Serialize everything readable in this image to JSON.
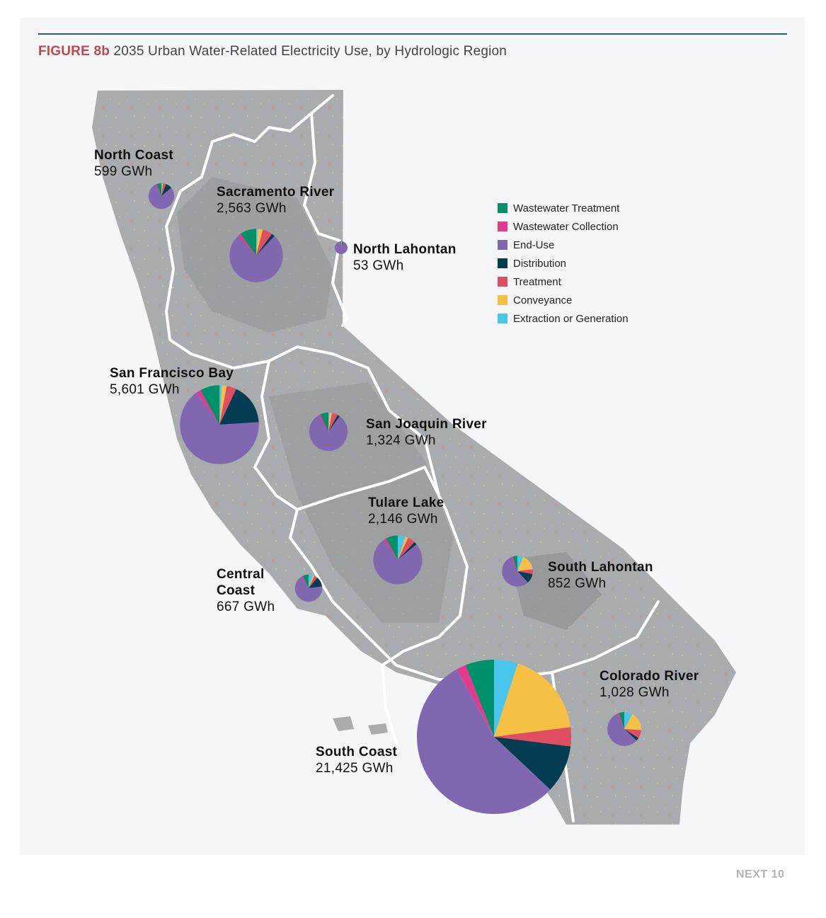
{
  "figure": {
    "label": "FIGURE 8b",
    "title": "2035 Urban Water-Related Electricity Use, by Hydrologic Region"
  },
  "footer": {
    "text": "NEXT 10"
  },
  "colors": {
    "Wastewater Treatment": "#00906a",
    "Wastewater Collection": "#e6398e",
    "End-Use": "#8068b0",
    "Distribution": "#043c52",
    "Treatment": "#df4f61",
    "Conveyance": "#f6c044",
    "Extraction or Generation": "#49c6ee"
  },
  "chart_data": {
    "type": "pie",
    "units": "GWh",
    "legend": {
      "placement": "top-right",
      "entries": [
        "Wastewater Treatment",
        "Wastewater Collection",
        "End-Use",
        "Distribution",
        "Treatment",
        "Conveyance",
        "Extraction or Generation"
      ]
    },
    "slice_order": [
      "Extraction or Generation",
      "Conveyance",
      "Treatment",
      "Distribution",
      "End-Use",
      "Wastewater Collection",
      "Wastewater Treatment"
    ],
    "regions": [
      {
        "name": "North Coast",
        "total": 599,
        "total_label": "599 GWh",
        "shares": {
          "Extraction or Generation": 0.01,
          "Conveyance": 0.01,
          "Treatment": 0.04,
          "Distribution": 0.08,
          "End-Use": 0.78,
          "Wastewater Collection": 0.02,
          "Wastewater Treatment": 0.06
        }
      },
      {
        "name": "Sacramento River",
        "total": 2563,
        "total_label": "2,563 GWh",
        "shares": {
          "Extraction or Generation": 0.01,
          "Conveyance": 0.03,
          "Treatment": 0.06,
          "Distribution": 0.02,
          "End-Use": 0.76,
          "Wastewater Collection": 0.02,
          "Wastewater Treatment": 0.1
        }
      },
      {
        "name": "North Lahontan",
        "total": 53,
        "total_label": "53 GWh",
        "shares": {
          "Extraction or Generation": 0.01,
          "Conveyance": 0.01,
          "Treatment": 0.02,
          "Distribution": 0.02,
          "End-Use": 0.9,
          "Wastewater Collection": 0.01,
          "Wastewater Treatment": 0.03
        }
      },
      {
        "name": "San Francisco Bay",
        "total": 5601,
        "total_label": "5,601 GWh",
        "shares": {
          "Extraction or Generation": 0.01,
          "Conveyance": 0.02,
          "Treatment": 0.04,
          "Distribution": 0.17,
          "End-Use": 0.66,
          "Wastewater Collection": 0.02,
          "Wastewater Treatment": 0.08
        }
      },
      {
        "name": "San Joaquin River",
        "total": 1324,
        "total_label": "1,324 GWh",
        "shares": {
          "Extraction or Generation": 0.01,
          "Conveyance": 0.02,
          "Treatment": 0.05,
          "Distribution": 0.02,
          "End-Use": 0.81,
          "Wastewater Collection": 0.02,
          "Wastewater Treatment": 0.07
        }
      },
      {
        "name": "Tulare Lake",
        "total": 2146,
        "total_label": "2,146 GWh",
        "shares": {
          "Extraction or Generation": 0.05,
          "Conveyance": 0.02,
          "Treatment": 0.05,
          "Distribution": 0.02,
          "End-Use": 0.76,
          "Wastewater Collection": 0.02,
          "Wastewater Treatment": 0.08
        }
      },
      {
        "name": "Central Coast",
        "total": 667,
        "total_label": "667 GWh",
        "shares": {
          "Extraction or Generation": 0.05,
          "Conveyance": 0.02,
          "Treatment": 0.04,
          "Distribution": 0.12,
          "End-Use": 0.68,
          "Wastewater Collection": 0.02,
          "Wastewater Treatment": 0.07
        }
      },
      {
        "name": "South Lahontan",
        "total": 852,
        "total_label": "852 GWh",
        "shares": {
          "Extraction or Generation": 0.06,
          "Conveyance": 0.17,
          "Treatment": 0.05,
          "Distribution": 0.1,
          "End-Use": 0.55,
          "Wastewater Collection": 0.02,
          "Wastewater Treatment": 0.05
        }
      },
      {
        "name": "Colorado River",
        "total": 1028,
        "total_label": "1,028 GWh",
        "shares": {
          "Extraction or Generation": 0.08,
          "Conveyance": 0.18,
          "Treatment": 0.08,
          "Distribution": 0.03,
          "End-Use": 0.56,
          "Wastewater Collection": 0.02,
          "Wastewater Treatment": 0.05
        }
      },
      {
        "name": "South Coast",
        "total": 21425,
        "total_label": "21,425 GWh",
        "shares": {
          "Extraction or Generation": 0.05,
          "Conveyance": 0.18,
          "Treatment": 0.04,
          "Distribution": 0.1,
          "End-Use": 0.55,
          "Wastewater Collection": 0.02,
          "Wastewater Treatment": 0.06
        }
      }
    ]
  }
}
